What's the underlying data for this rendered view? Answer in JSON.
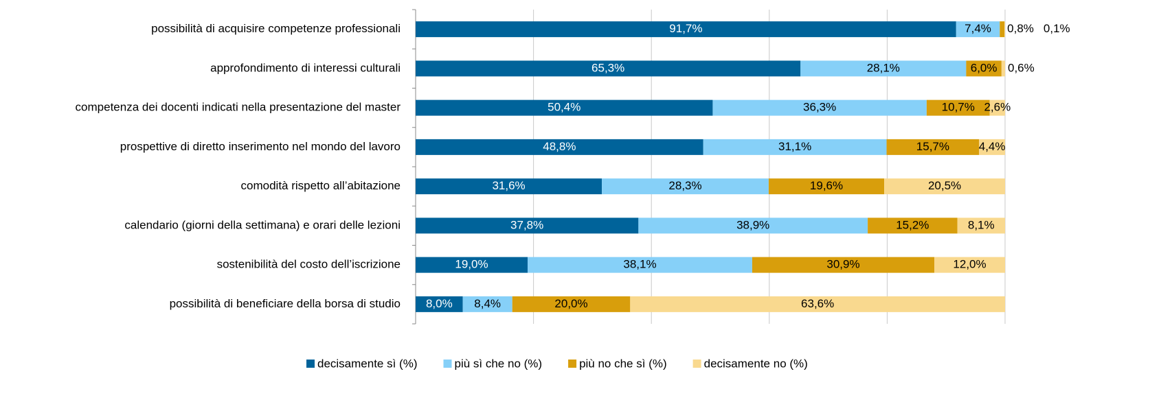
{
  "chart_data": {
    "type": "stacked-bar-horizontal",
    "categories": [
      "possibilità di acquisire competenze professionali",
      "approfondimento di interessi culturali",
      "competenza dei docenti indicati nella presentazione del master",
      "prospettive di diretto inserimento nel mondo del lavoro",
      "comodità rispetto all’abitazione",
      "calendario (giorni della settimana) e orari delle lezioni",
      "sostenibilità del costo dell’iscrizione",
      "possibilità di beneficiare della borsa di studio"
    ],
    "series": [
      {
        "name": "decisamente sì (%)",
        "color": "#00639a",
        "values": [
          91.7,
          65.3,
          50.4,
          48.8,
          31.6,
          37.8,
          19.0,
          8.0
        ],
        "value_labels": [
          "91,7%",
          "65,3%",
          "50,4%",
          "48,8%",
          "31,6%",
          "37,8%",
          "19,0%",
          "8,0%"
        ]
      },
      {
        "name": "più sì che no (%)",
        "color": "#86d0f8",
        "values": [
          7.4,
          28.1,
          36.3,
          31.1,
          28.3,
          38.9,
          38.1,
          8.4
        ],
        "value_labels": [
          "7,4%",
          "28,1%",
          "36,3%",
          "31,1%",
          "28,3%",
          "38,9%",
          "38,1%",
          "8,4%"
        ]
      },
      {
        "name": "più no che sì (%)",
        "color": "#d89e0c",
        "values": [
          0.8,
          6.0,
          10.7,
          15.7,
          19.6,
          15.2,
          30.9,
          20.0
        ],
        "value_labels": [
          "0,8%",
          "6,0%",
          "10,7%",
          "15,7%",
          "19,6%",
          "15,2%",
          "30,9%",
          "20,0%"
        ]
      },
      {
        "name": "decisamente no (%)",
        "color": "#f9d98f",
        "values": [
          0.1,
          0.6,
          2.6,
          4.4,
          20.5,
          8.1,
          12.0,
          63.6
        ],
        "value_labels": [
          "0,1%",
          "0,6%",
          "2,6%",
          "4,4%",
          "20,5%",
          "8,1%",
          "12,0%",
          "63,6%"
        ]
      }
    ],
    "xlim": [
      0,
      100
    ],
    "xticks": [
      0,
      20,
      40,
      60,
      80,
      100
    ],
    "grid": true
  }
}
